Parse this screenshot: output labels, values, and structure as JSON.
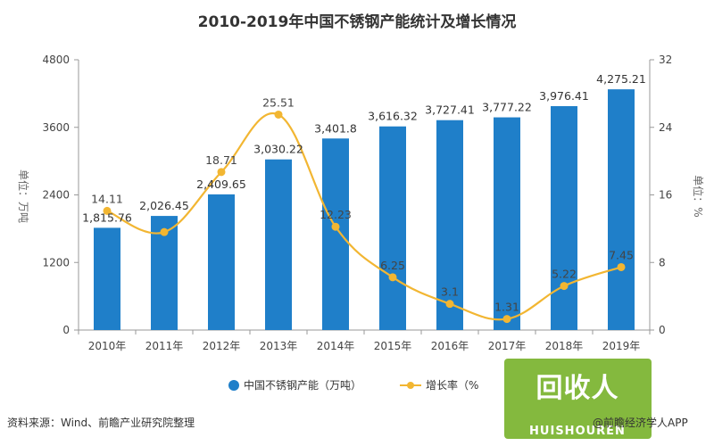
{
  "chart_data": {
    "type": "bar",
    "title": "2010-2019年中国不锈钢产能统计及增长情况",
    "categories": [
      "2010年",
      "2011年",
      "2012年",
      "2013年",
      "2014年",
      "2015年",
      "2016年",
      "2017年",
      "2018年",
      "2019年"
    ],
    "series": [
      {
        "name": "中国不锈钢产能（万吨）",
        "type": "bar",
        "axis": "left",
        "values": [
          1815.76,
          2026.45,
          2409.65,
          3030.22,
          3401.8,
          3616.32,
          3727.41,
          3777.22,
          3976.41,
          4275.21
        ],
        "labels": [
          "1,815.76",
          "2,026.45",
          "2,409.65",
          "3,030.22",
          "3,401.8",
          "3,616.32",
          "3,727.41",
          "3,777.22",
          "3,976.41",
          "4,275.21"
        ]
      },
      {
        "name": "增长率（%",
        "type": "line",
        "axis": "right",
        "values": [
          14.11,
          null,
          18.71,
          25.51,
          12.23,
          6.25,
          3.1,
          1.31,
          5.22,
          7.45
        ],
        "labels": [
          "14.11",
          "",
          "18.71",
          "25.51",
          "12.23",
          "6.25",
          "3.1",
          "1.31",
          "5.22",
          "7.45"
        ]
      }
    ],
    "y_left": {
      "label": "单位：万吨",
      "ylim": [
        0,
        4800
      ],
      "ticks": [
        "0",
        "1200",
        "2400",
        "3600",
        "4800"
      ]
    },
    "y_right": {
      "label": "单位：%",
      "ylim": [
        0,
        32
      ],
      "ticks": [
        "0",
        "8",
        "16",
        "24",
        "32"
      ]
    },
    "grid": false,
    "legend": "bottom-center",
    "colors": {
      "bar": "#1f7fc9",
      "line": "#f2b632",
      "axis": "#999999"
    }
  },
  "footer": {
    "source": "资料来源：Wind、前瞻产业研究院整理",
    "credit": "@前瞻经济学人APP",
    "brand_sub": "HUISHOUREN",
    "brand_main": "回收人"
  }
}
